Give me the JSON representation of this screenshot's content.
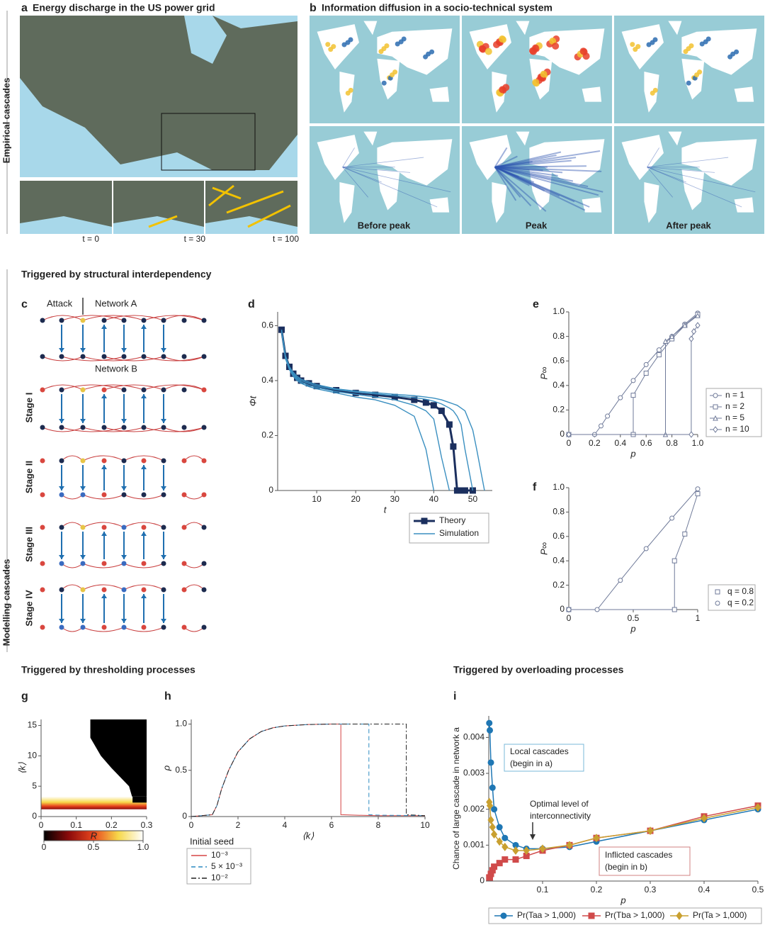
{
  "side_labels": [
    "Empirical cascades",
    "Modelling cascades"
  ],
  "panel_a": {
    "label": "a",
    "title": "Energy discharge in the US power grid",
    "times": [
      "t = 0",
      "t = 30",
      "t = 100"
    ]
  },
  "panel_b": {
    "label": "b",
    "title": "Information diffusion in a socio-technical system",
    "columns": [
      "Before peak",
      "Peak",
      "After peak"
    ]
  },
  "section_titles": [
    "Triggered by structural interdependency",
    "Triggered by thresholding processes",
    "Triggered by overloading processes"
  ],
  "panel_c": {
    "label": "c",
    "annotations": [
      "Attack",
      "Network A",
      "Network B"
    ],
    "stages": [
      "Stage I",
      "Stage II",
      "Stage III",
      "Stage IV"
    ]
  },
  "chart_data": [
    {
      "type": "line",
      "label": "d",
      "x_label": "t",
      "y_label": "Φt",
      "x": [
        1,
        2,
        3,
        4,
        5,
        6,
        8,
        10,
        15,
        20,
        25,
        30,
        35,
        38,
        40,
        42,
        44,
        45,
        46,
        47,
        48,
        50,
        51,
        53
      ],
      "xlim": [
        0,
        55
      ],
      "ylim": [
        0,
        0.65
      ],
      "xticks": [
        10,
        20,
        30,
        40,
        50
      ],
      "yticks": [
        0,
        0.2,
        0.4,
        0.6
      ],
      "series": [
        {
          "name": "Theory",
          "color": "#1b2f5e",
          "marker": "square",
          "values": [
            0.585,
            0.49,
            0.45,
            0.425,
            0.41,
            0.4,
            0.39,
            0.38,
            0.365,
            0.355,
            0.348,
            0.34,
            0.33,
            0.32,
            0.31,
            0.29,
            0.24,
            0.16,
            0,
            0,
            0,
            0,
            null,
            null
          ]
        },
        {
          "name": "Simulation",
          "color": "#3a8fc0",
          "runs": [
            {
              "values": [
                0.58,
                0.48,
                0.44,
                0.415,
                0.4,
                0.39,
                0.378,
                0.37,
                0.355,
                0.34,
                0.33,
                0.31,
                0.27,
                0.15,
                0,
                null,
                null,
                null,
                null,
                null,
                null,
                null,
                null,
                null
              ]
            },
            {
              "values": [
                0.58,
                0.48,
                0.445,
                0.42,
                0.405,
                0.395,
                0.383,
                0.375,
                0.36,
                0.35,
                0.34,
                0.33,
                0.31,
                0.29,
                0.26,
                0.12,
                0,
                null,
                null,
                null,
                null,
                null,
                null,
                null
              ]
            },
            {
              "values": [
                0.585,
                0.49,
                0.45,
                0.425,
                0.41,
                0.4,
                0.39,
                0.38,
                0.367,
                0.358,
                0.352,
                0.345,
                0.338,
                0.332,
                0.325,
                0.315,
                0.3,
                0.29,
                0.27,
                0.24,
                0.15,
                0,
                null,
                null
              ]
            },
            {
              "values": [
                0.585,
                0.49,
                0.45,
                0.43,
                0.415,
                0.405,
                0.395,
                0.385,
                0.37,
                0.362,
                0.356,
                0.35,
                0.345,
                0.34,
                0.336,
                0.33,
                0.32,
                0.315,
                0.31,
                0.3,
                0.29,
                0.22,
                0.15,
                0
              ]
            }
          ]
        }
      ]
    },
    {
      "type": "line",
      "label": "e",
      "x_label": "p",
      "y_label": "P∞",
      "xlim": [
        0,
        1
      ],
      "ylim": [
        0,
        1
      ],
      "xticks": [
        0,
        0.2,
        0.4,
        0.6,
        0.8,
        {
          "value": 1,
          "label": "1.0"
        }
      ],
      "yticks": [
        0,
        0.2,
        0.4,
        0.6,
        0.8,
        {
          "value": 1,
          "label": "1.0"
        }
      ],
      "series": [
        {
          "name": "n = 1",
          "color": "#6f7a99",
          "marker": "circle",
          "x": [
            0,
            0.2,
            0.25,
            0.3,
            0.4,
            0.5,
            0.6,
            0.7,
            0.8,
            0.9,
            1.0
          ],
          "values": [
            0,
            0,
            0.07,
            0.15,
            0.3,
            0.44,
            0.57,
            0.69,
            0.8,
            0.9,
            0.99
          ]
        },
        {
          "name": "n = 2",
          "color": "#6f7a99",
          "marker": "square",
          "x": [
            0,
            0.5,
            0.5,
            0.6,
            0.7,
            0.8,
            0.9,
            1.0
          ],
          "values": [
            0,
            0,
            0.32,
            0.5,
            0.65,
            0.78,
            0.89,
            0.98
          ]
        },
        {
          "name": "n = 5",
          "color": "#6f7a99",
          "marker": "triangle",
          "x": [
            0,
            0.75,
            0.75,
            0.8,
            0.9,
            1.0
          ],
          "values": [
            0,
            0,
            0.76,
            0.8,
            0.89,
            0.97
          ]
        },
        {
          "name": "n = 10",
          "color": "#6f7a99",
          "marker": "diamond",
          "x": [
            0,
            0.95,
            0.95,
            0.97,
            1.0
          ],
          "values": [
            0,
            0,
            0.78,
            0.84,
            0.89
          ]
        }
      ]
    },
    {
      "type": "line",
      "label": "f",
      "x_label": "p",
      "y_label": "P∞",
      "xlim": [
        0,
        1
      ],
      "ylim": [
        0,
        1
      ],
      "xticks": [
        0,
        0.5,
        1
      ],
      "yticks": [
        0,
        0.2,
        0.4,
        0.6,
        0.8,
        {
          "value": 1,
          "label": "1.0"
        }
      ],
      "series": [
        {
          "name": "q = 0.8",
          "color": "#6f7a99",
          "marker": "square",
          "x": [
            0,
            0.82,
            0.82,
            0.9,
            1.0
          ],
          "values": [
            0,
            0,
            0.4,
            0.62,
            0.95
          ]
        },
        {
          "name": "q = 0.2",
          "color": "#6f7a99",
          "marker": "circle",
          "x": [
            0,
            0.22,
            0.4,
            0.6,
            0.8,
            1.0
          ],
          "values": [
            0,
            0,
            0.24,
            0.5,
            0.75,
            0.99
          ]
        }
      ]
    },
    {
      "type": "heatmap",
      "label": "g",
      "x_label": "R",
      "y_label": "⟨k⟩",
      "xlim": [
        0,
        0.3
      ],
      "ylim": [
        0,
        16
      ],
      "xticks": [
        0,
        0.1,
        0.2,
        0.3
      ],
      "yticks": [
        0,
        5,
        10,
        15
      ],
      "colormap": [
        "#000000",
        "#8b0a0a",
        "#e8461e",
        "#f7d84a",
        "#ffffff"
      ],
      "cticks": [
        0,
        0.5,
        {
          "value": 1,
          "label": "1.0"
        }
      ]
    },
    {
      "type": "line",
      "label": "h",
      "x_label": "⟨k⟩",
      "y_label": "ρ",
      "legend_title": "Initial seed",
      "xlim": [
        0,
        10
      ],
      "ylim": [
        0,
        1.05
      ],
      "xticks": [
        0,
        2,
        4,
        6,
        8,
        10
      ],
      "yticks": [
        0,
        0.5,
        {
          "value": 1,
          "label": "1.0"
        }
      ],
      "series": [
        {
          "name": "10⁻³",
          "color": "#d64545",
          "dash": "solid",
          "x": [
            0,
            0.9,
            1.1,
            1.3,
            1.6,
            2,
            2.5,
            3,
            3.5,
            4,
            5,
            6,
            6.4,
            6.4,
            7,
            8,
            10
          ],
          "values": [
            0,
            0.02,
            0.12,
            0.3,
            0.5,
            0.7,
            0.84,
            0.92,
            0.96,
            0.98,
            0.995,
            1.0,
            1.0,
            0.02,
            0.015,
            0.01,
            0.01
          ]
        },
        {
          "name": "5 × 10⁻³",
          "color": "#2a8ac0",
          "dash": "dashed",
          "x": [
            0,
            0.9,
            1.1,
            1.3,
            1.6,
            2,
            2.5,
            3,
            3.5,
            4,
            5,
            6,
            7,
            7.6,
            7.6,
            8,
            10
          ],
          "values": [
            0,
            0.02,
            0.12,
            0.3,
            0.5,
            0.7,
            0.84,
            0.92,
            0.96,
            0.98,
            0.995,
            1.0,
            1,
            1,
            0.02,
            0.015,
            0.01
          ]
        },
        {
          "name": "10⁻²",
          "color": "#222222",
          "dash": "dashdot",
          "x": [
            0,
            0.9,
            1.1,
            1.3,
            1.6,
            2,
            2.5,
            3,
            3.5,
            4,
            5,
            6,
            8,
            9.2,
            9.2,
            10
          ],
          "values": [
            0,
            0.02,
            0.12,
            0.3,
            0.5,
            0.7,
            0.84,
            0.92,
            0.96,
            0.98,
            0.995,
            1.0,
            1,
            1,
            0.02,
            0.01
          ]
        }
      ]
    },
    {
      "type": "line",
      "label": "i",
      "x_label": "p",
      "y_label": "Chance of large cascade in network a",
      "x": [
        0.001,
        0.002,
        0.004,
        0.007,
        0.01,
        0.02,
        0.03,
        0.05,
        0.07,
        0.1,
        0.15,
        0.2,
        0.3,
        0.4,
        0.5
      ],
      "xlim": [
        0,
        0.5
      ],
      "ylim": [
        0,
        0.0046
      ],
      "xticks": [
        0.1,
        0.2,
        0.3,
        0.4,
        0.5
      ],
      "yticks": [
        0,
        0.001,
        0.002,
        0.003,
        0.004
      ],
      "annotations": [
        [
          "Local cascades",
          "(begin in a)"
        ],
        [
          "Optimal level of",
          "interconnectivity"
        ],
        [
          "Inflicted cascades",
          "(begin in b)"
        ]
      ],
      "series": [
        {
          "name": "Pr(Taa > 1,000)",
          "color": "#1f77b4",
          "marker": "circle",
          "values": [
            0.0044,
            0.0042,
            0.0033,
            0.0026,
            0.002,
            0.0015,
            0.0012,
            0.001,
            0.0009,
            0.0009,
            0.00095,
            0.0011,
            0.0014,
            0.0017,
            0.002
          ]
        },
        {
          "name": "Pr(Tba > 1,000)",
          "color": "#d04a4a",
          "marker": "square",
          "values": [
            0.0001,
            0.0001,
            0.0002,
            0.0003,
            0.0004,
            0.0005,
            0.0006,
            0.0006,
            0.0007,
            0.00085,
            0.001,
            0.0012,
            0.0014,
            0.0018,
            0.0021
          ]
        },
        {
          "name": "Pr(Ta > 1,000)",
          "color": "#c9a030",
          "marker": "diamond",
          "values": [
            0.0022,
            0.0021,
            0.0017,
            0.0015,
            0.0013,
            0.0011,
            0.00095,
            0.00085,
            0.00085,
            0.0009,
            0.001,
            0.0012,
            0.0014,
            0.00175,
            0.00205
          ]
        }
      ]
    }
  ]
}
